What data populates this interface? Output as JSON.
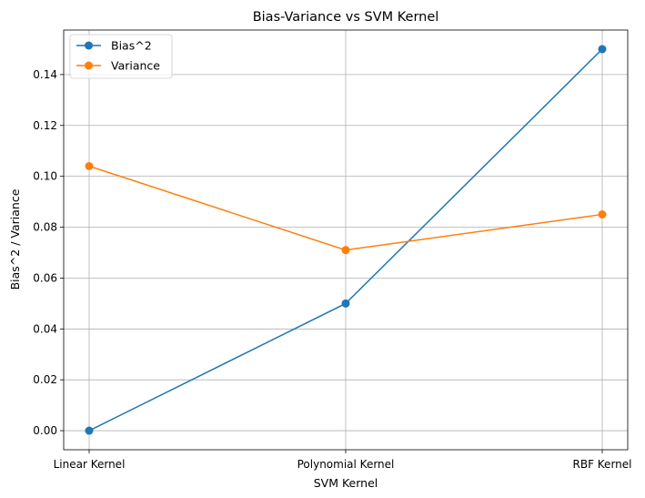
{
  "chart_data": {
    "type": "line",
    "title": "Bias-Variance vs SVM Kernel",
    "xlabel": "SVM Kernel",
    "ylabel": "Bias^2 / Variance",
    "categories": [
      "Linear Kernel",
      "Polynomial Kernel",
      "RBF Kernel"
    ],
    "series": [
      {
        "name": "Bias^2",
        "values": [
          0.0,
          0.05,
          0.15
        ],
        "color": "#1f77b4",
        "marker": "circle"
      },
      {
        "name": "Variance",
        "values": [
          0.104,
          0.071,
          0.085
        ],
        "color": "#ff7f0e",
        "marker": "circle"
      }
    ],
    "ylim": [
      -0.0075,
      0.1575
    ],
    "yticks": [
      0.0,
      0.02,
      0.04,
      0.06,
      0.08,
      0.1,
      0.12,
      0.14
    ],
    "ytick_labels": [
      "0.00",
      "0.02",
      "0.04",
      "0.06",
      "0.08",
      "0.10",
      "0.12",
      "0.14"
    ],
    "grid": true,
    "legend_position": "top-left"
  }
}
